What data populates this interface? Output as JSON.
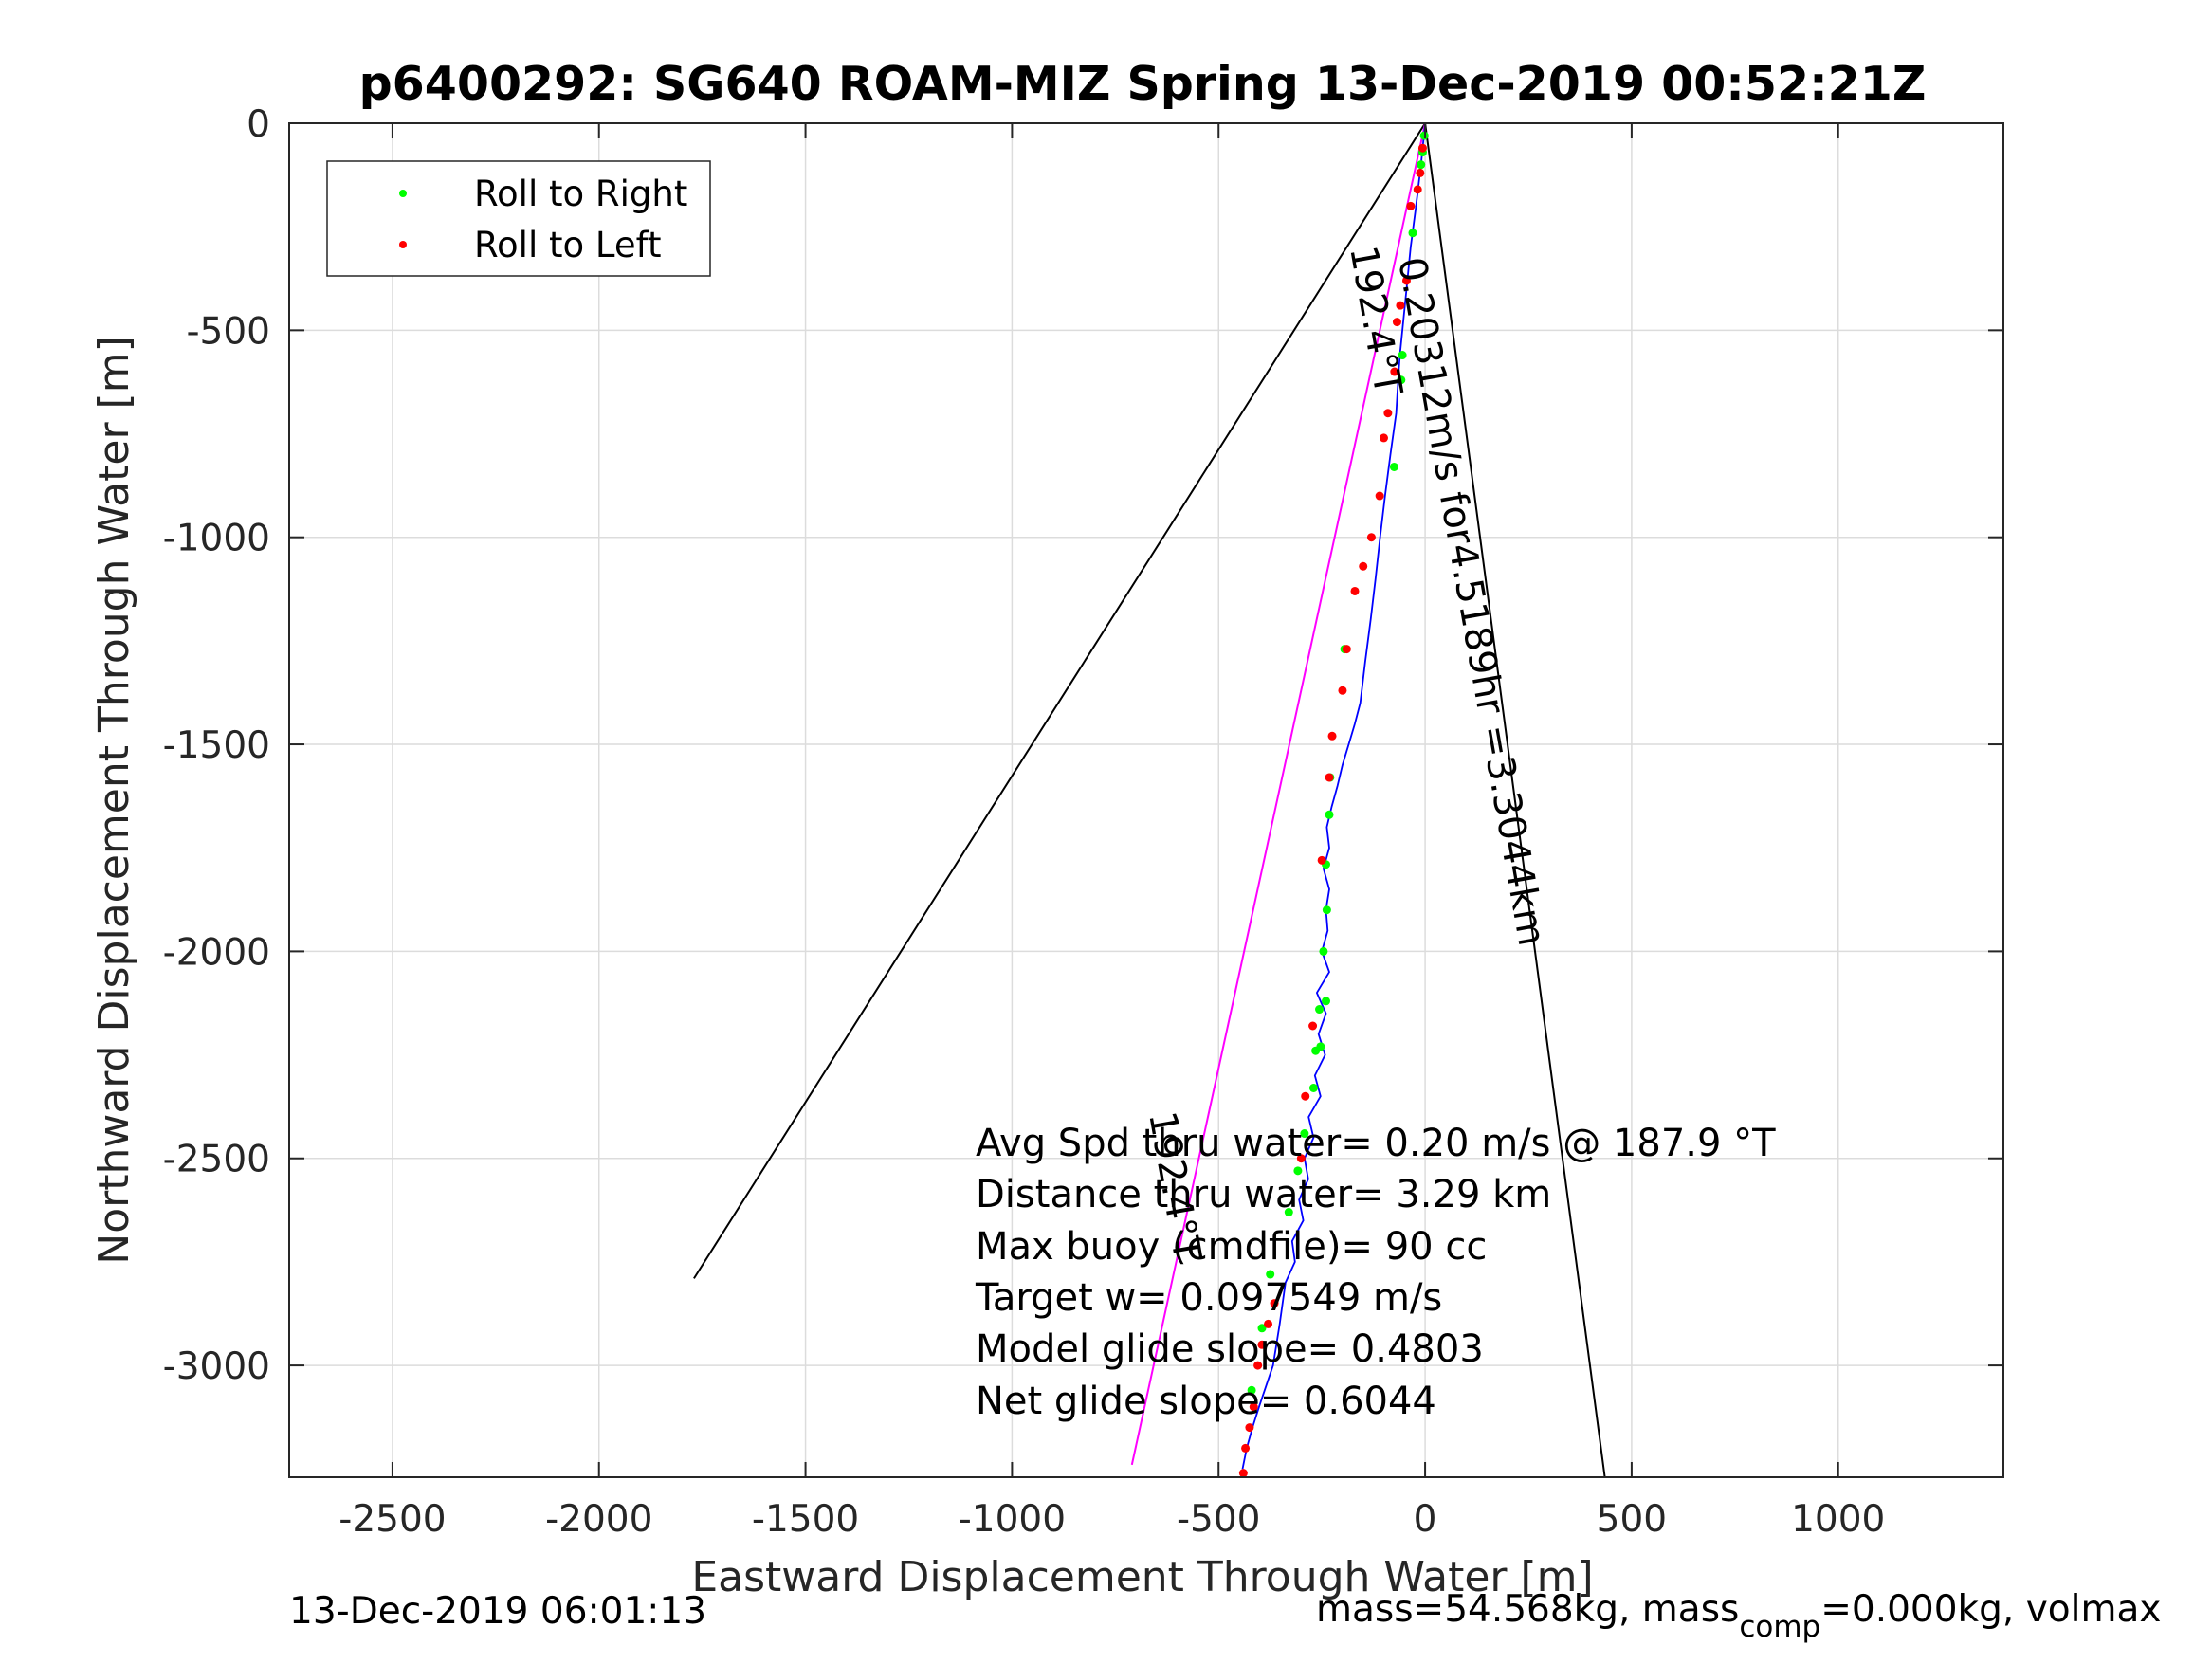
{
  "chart_data": {
    "type": "line",
    "title": "p6400292: SG640 ROAM-MIZ Spring 13-Dec-2019 00:52:21Z",
    "xlabel": "Eastward Displacement Through Water [m]",
    "ylabel": "Northward Displacement Through Water [m]",
    "xlim": [
      -2750,
      1400
    ],
    "ylim": [
      -3270,
      0
    ],
    "xticks": [
      -2500,
      -2000,
      -1500,
      -1000,
      -500,
      0,
      500,
      1000
    ],
    "yticks": [
      0,
      -500,
      -1000,
      -1500,
      -2000,
      -2500,
      -3000
    ],
    "xtick_labels": [
      "-2500",
      "-2000",
      "-1500",
      "-1000",
      "-500",
      "0",
      "500",
      "1000"
    ],
    "ytick_labels": [
      "0",
      "-500",
      "-1000",
      "-1500",
      "-2000",
      "-2500",
      "-3000"
    ],
    "grid": true,
    "legend": {
      "placement": "top-left",
      "entries": [
        {
          "label": "Roll to Right",
          "color": "#00ff00"
        },
        {
          "label": "Roll to Left",
          "color": "#ff0000"
        }
      ]
    },
    "colors": {
      "track": "#0000ff",
      "heading_line": "#ff00ff",
      "fan_lines": "#000000",
      "roll_right": "#00ff00",
      "roll_left": "#ff0000"
    },
    "series": [
      {
        "kind": "track",
        "x": [
          0,
          -10,
          -22,
          -35,
          -45,
          -55,
          -60,
          -64,
          -70,
          -84,
          -97,
          -109,
          -120,
          -132,
          -145,
          -157,
          -170,
          -185,
          -200,
          -212,
          -226,
          -238,
          -232,
          -246,
          -232,
          -240,
          -236,
          -250,
          -232,
          -262,
          -240,
          -258,
          -242,
          -267,
          -253,
          -282,
          -270,
          -292,
          -283,
          -305,
          -295,
          -322,
          -315,
          -338,
          -352,
          -368,
          -385,
          -402,
          -418,
          -432,
          -442
        ],
        "y": [
          0,
          -100,
          -200,
          -300,
          -400,
          -500,
          -550,
          -600,
          -700,
          -800,
          -900,
          -1000,
          -1100,
          -1200,
          -1300,
          -1400,
          -1450,
          -1500,
          -1550,
          -1600,
          -1650,
          -1700,
          -1750,
          -1800,
          -1850,
          -1900,
          -1950,
          -2000,
          -2050,
          -2100,
          -2150,
          -2200,
          -2250,
          -2300,
          -2350,
          -2400,
          -2450,
          -2500,
          -2550,
          -2600,
          -2650,
          -2700,
          -2750,
          -2800,
          -2900,
          -3000,
          -3050,
          -3100,
          -3150,
          -3200,
          -3250
        ]
      },
      {
        "kind": "heading",
        "x": [
          0,
          -710
        ],
        "y": [
          0,
          -3240
        ]
      },
      {
        "kind": "fan",
        "x": [
          -1770,
          0,
          435
        ],
        "y": [
          -2790,
          0,
          -3270
        ]
      },
      {
        "kind": "roll_right_points",
        "x": [
          -2,
          -6,
          -10,
          -30,
          -55,
          -58,
          -75,
          -195,
          -230,
          -232,
          -240,
          -238,
          -246,
          -240,
          -256,
          -253,
          -265,
          -270,
          -292,
          -308,
          -330,
          -375,
          -395,
          -420
        ],
        "y": [
          -30,
          -70,
          -100,
          -265,
          -560,
          -620,
          -830,
          -1270,
          -1580,
          -1670,
          -1790,
          -1900,
          -2000,
          -2120,
          -2140,
          -2230,
          -2240,
          -2330,
          -2440,
          -2530,
          -2630,
          -2780,
          -2910,
          -3060
        ]
      },
      {
        "kind": "roll_left_points",
        "x": [
          -6,
          -12,
          -18,
          -35,
          -45,
          -60,
          -68,
          -74,
          -90,
          -100,
          -110,
          -130,
          -150,
          -170,
          -190,
          -200,
          -225,
          -232,
          -250,
          -272,
          -290,
          -300,
          -365,
          -380,
          -395,
          -405,
          -415,
          -425,
          -435,
          -440
        ],
        "y": [
          -60,
          -120,
          -160,
          -200,
          -380,
          -440,
          -480,
          -600,
          -700,
          -760,
          -900,
          -1000,
          -1070,
          -1130,
          -1270,
          -1370,
          -1480,
          -1580,
          -1780,
          -2180,
          -2350,
          -2500,
          -2850,
          -2900,
          -2950,
          -3000,
          -3100,
          -3150,
          -3200,
          -3260
        ]
      }
    ],
    "annotations": {
      "heading_label": "192.4°T",
      "speed_label": "0.20312m/s for4.5189hr =3.3044km",
      "lower_heading_label": "192.4°T",
      "stats": [
        "Avg Spd thru water=  0.20 m/s @ 187.9 °T",
        "Distance thru water=  3.29 km",
        "Max buoy (cmdfile)= 90 cc",
        "Target w= 0.097549 m/s",
        "Model glide slope= 0.4803",
        "Net glide slope= 0.6044"
      ]
    },
    "footer": {
      "left": "13-Dec-2019 06:01:13",
      "right_prefix": "mass=54.568kg, mass",
      "right_sub": "comp",
      "right_suffix": "=0.000kg, volmax"
    }
  }
}
